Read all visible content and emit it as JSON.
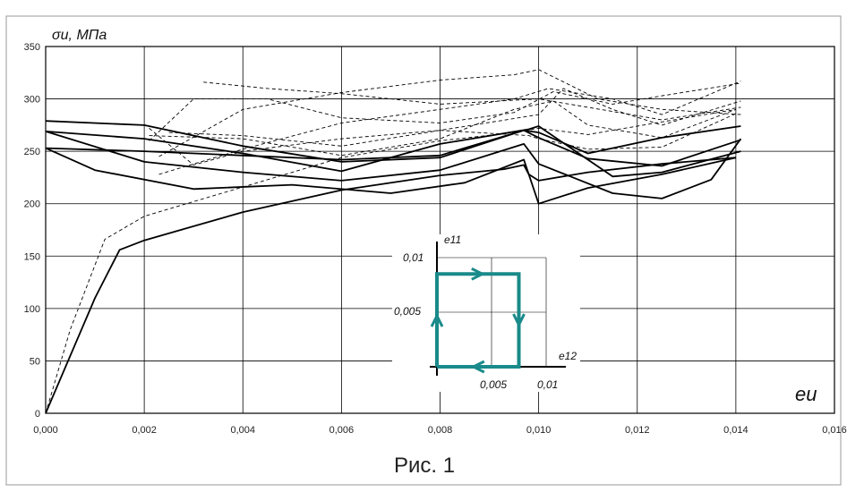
{
  "chart_data": {
    "type": "line",
    "ylabel": "σu, МПа",
    "xlabel": "eu",
    "caption": "Рис. 1",
    "xlim": [
      0,
      0.016
    ],
    "ylim": [
      0,
      350
    ],
    "xticks": [
      "0,000",
      "0,002",
      "0,004",
      "0,006",
      "0,008",
      "0,010",
      "0,012",
      "0,014",
      "0,016"
    ],
    "yticks": [
      "0",
      "50",
      "100",
      "150",
      "200",
      "250",
      "300",
      "350"
    ],
    "grid": true,
    "series": [
      {
        "style": "solid",
        "points": [
          [
            0,
            0
          ],
          [
            0.001,
            110
          ],
          [
            0.0015,
            156
          ],
          [
            0.002,
            165
          ],
          [
            0.004,
            192
          ],
          [
            0.006,
            213
          ],
          [
            0.008,
            227
          ],
          [
            0.0093,
            233
          ],
          [
            0.0097,
            237
          ],
          [
            0.0098,
            228
          ],
          [
            0.01,
            222
          ],
          [
            0.011,
            230
          ],
          [
            0.0125,
            238
          ],
          [
            0.014,
            244
          ]
        ]
      },
      {
        "style": "solid",
        "points": [
          [
            0,
            253
          ],
          [
            0.001,
            232
          ],
          [
            0.003,
            214
          ],
          [
            0.005,
            218
          ],
          [
            0.007,
            210
          ],
          [
            0.0085,
            220
          ],
          [
            0.0097,
            242
          ],
          [
            0.01,
            200
          ],
          [
            0.011,
            215
          ],
          [
            0.0125,
            228
          ],
          [
            0.014,
            244
          ]
        ]
      },
      {
        "style": "solid",
        "points": [
          [
            0,
            269
          ],
          [
            0.002,
            240
          ],
          [
            0.004,
            230
          ],
          [
            0.006,
            222
          ],
          [
            0.008,
            232
          ],
          [
            0.0097,
            257
          ],
          [
            0.01,
            238
          ],
          [
            0.0115,
            210
          ],
          [
            0.0125,
            205
          ],
          [
            0.0135,
            223
          ],
          [
            0.0141,
            262
          ]
        ]
      },
      {
        "style": "solid",
        "points": [
          [
            0,
            279
          ],
          [
            0.002,
            275
          ],
          [
            0.004,
            255
          ],
          [
            0.006,
            240
          ],
          [
            0.008,
            244
          ],
          [
            0.0097,
            270
          ],
          [
            0.01,
            263
          ],
          [
            0.011,
            243
          ],
          [
            0.0125,
            236
          ],
          [
            0.0141,
            261
          ]
        ]
      },
      {
        "style": "solid",
        "points": [
          [
            0,
            269
          ],
          [
            0.002,
            262
          ],
          [
            0.004,
            248
          ],
          [
            0.006,
            231
          ],
          [
            0.008,
            257
          ],
          [
            0.0098,
            271
          ],
          [
            0.01,
            274
          ],
          [
            0.0115,
            226
          ],
          [
            0.0125,
            230
          ],
          [
            0.0141,
            250
          ]
        ]
      },
      {
        "style": "solid",
        "points": [
          [
            0,
            253
          ],
          [
            0.002,
            250
          ],
          [
            0.004,
            246
          ],
          [
            0.006,
            242
          ],
          [
            0.008,
            246
          ],
          [
            0.0097,
            270
          ],
          [
            0.01,
            268
          ],
          [
            0.011,
            248
          ],
          [
            0.0125,
            263
          ],
          [
            0.0141,
            274
          ]
        ]
      },
      {
        "style": "dashed",
        "points": [
          [
            0,
            0
          ],
          [
            0.0005,
            80
          ],
          [
            0.0012,
            166
          ],
          [
            0.002,
            188
          ],
          [
            0.004,
            216
          ],
          [
            0.006,
            244
          ],
          [
            0.008,
            260
          ],
          [
            0.0095,
            268
          ],
          [
            0.01,
            272
          ],
          [
            0.011,
            266
          ],
          [
            0.0125,
            278
          ],
          [
            0.014,
            290
          ]
        ]
      },
      {
        "style": "dashed",
        "points": [
          [
            0.0021,
            272
          ],
          [
            0.003,
            237
          ],
          [
            0.004,
            250
          ],
          [
            0.006,
            262
          ],
          [
            0.008,
            270
          ],
          [
            0.0098,
            265
          ],
          [
            0.01,
            262
          ],
          [
            0.011,
            252
          ],
          [
            0.0125,
            254
          ],
          [
            0.014,
            286
          ]
        ]
      },
      {
        "style": "dashed",
        "points": [
          [
            0.0021,
            265
          ],
          [
            0.004,
            262
          ],
          [
            0.006,
            246
          ],
          [
            0.008,
            262
          ],
          [
            0.0095,
            290
          ],
          [
            0.0103,
            298
          ],
          [
            0.011,
            275
          ],
          [
            0.0125,
            263
          ],
          [
            0.014,
            290
          ]
        ]
      },
      {
        "style": "dashed",
        "points": [
          [
            0.0021,
            260
          ],
          [
            0.003,
            300
          ],
          [
            0.0045,
            300
          ],
          [
            0.006,
            282
          ],
          [
            0.008,
            277
          ],
          [
            0.0095,
            287
          ],
          [
            0.0103,
            307
          ],
          [
            0.0115,
            295
          ],
          [
            0.0125,
            303
          ],
          [
            0.0141,
            315
          ]
        ]
      },
      {
        "style": "dashed",
        "points": [
          [
            0.0023,
            228
          ],
          [
            0.004,
            252
          ],
          [
            0.006,
            277
          ],
          [
            0.008,
            290
          ],
          [
            0.0095,
            300
          ],
          [
            0.0102,
            310
          ],
          [
            0.0115,
            300
          ],
          [
            0.0125,
            285
          ],
          [
            0.0141,
            317
          ]
        ]
      },
      {
        "style": "dashed",
        "points": [
          [
            0.0023,
            245
          ],
          [
            0.004,
            290
          ],
          [
            0.006,
            306
          ],
          [
            0.008,
            318
          ],
          [
            0.0095,
            323
          ],
          [
            0.01,
            328
          ],
          [
            0.0112,
            300
          ],
          [
            0.0125,
            290
          ],
          [
            0.0141,
            285
          ]
        ]
      },
      {
        "style": "dashed",
        "points": [
          [
            0.0025,
            268
          ],
          [
            0.004,
            265
          ],
          [
            0.006,
            255
          ],
          [
            0.008,
            270
          ],
          [
            0.01,
            285
          ],
          [
            0.0105,
            310
          ],
          [
            0.0115,
            290
          ],
          [
            0.0125,
            275
          ],
          [
            0.0141,
            298
          ]
        ]
      },
      {
        "style": "dashed",
        "points": [
          [
            0.0032,
            316
          ],
          [
            0.0045,
            310
          ],
          [
            0.006,
            305
          ],
          [
            0.008,
            295
          ],
          [
            0.01,
            300
          ],
          [
            0.0115,
            288
          ],
          [
            0.0125,
            280
          ],
          [
            0.0141,
            292
          ]
        ]
      }
    ],
    "inset": {
      "type": "strain-path",
      "y_axis_label": "e11",
      "x_axis_label": "e12",
      "x_ticks": [
        "0,005",
        "0,01"
      ],
      "y_ticks": [
        "0,005",
        "0,01"
      ],
      "path": [
        [
          0,
          0
        ],
        [
          0,
          0.0085
        ],
        [
          0.0075,
          0.0085
        ],
        [
          0.0075,
          0
        ],
        [
          0,
          0
        ]
      ],
      "path_color": "#1a8a8a"
    }
  }
}
